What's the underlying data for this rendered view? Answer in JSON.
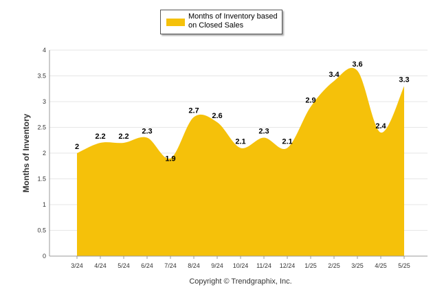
{
  "chart_data": {
    "type": "area",
    "categories": [
      "3/24",
      "4/24",
      "5/24",
      "6/24",
      "7/24",
      "8/24",
      "9/24",
      "10/24",
      "11/24",
      "12/24",
      "1/25",
      "2/25",
      "3/25",
      "4/25",
      "5/25"
    ],
    "series": [
      {
        "name": "Months of Inventory based on Closed Sales",
        "values": [
          2,
          2.2,
          2.2,
          2.3,
          1.9,
          2.7,
          2.6,
          2.1,
          2.3,
          2.1,
          2.9,
          3.4,
          3.6,
          2.4,
          3.3
        ],
        "labels": [
          "2",
          "2.2",
          "2.2",
          "2.3",
          "1.9",
          "2.7",
          "2.6",
          "2.1",
          "2.3",
          "2.1",
          "2.9",
          "3.4",
          "3.6",
          "2.4",
          "3.3"
        ],
        "color": "#F5C10A"
      }
    ],
    "yticks": [
      "0",
      "0.5",
      "1",
      "1.5",
      "2",
      "2.5",
      "3",
      "3.5",
      "4"
    ],
    "ylim": [
      0,
      4
    ],
    "ylabel": "Months of Inventory",
    "xlabel": "",
    "grid": true,
    "legend_position": "top-center"
  },
  "legend": {
    "label": "Months of Inventory based on Closed Sales"
  },
  "footer": {
    "copyright": "Copyright © Trendgraphix, Inc."
  },
  "colors": {
    "grid": "#e6e6e6",
    "axis": "#999999",
    "fill": "#F5C10A"
  }
}
